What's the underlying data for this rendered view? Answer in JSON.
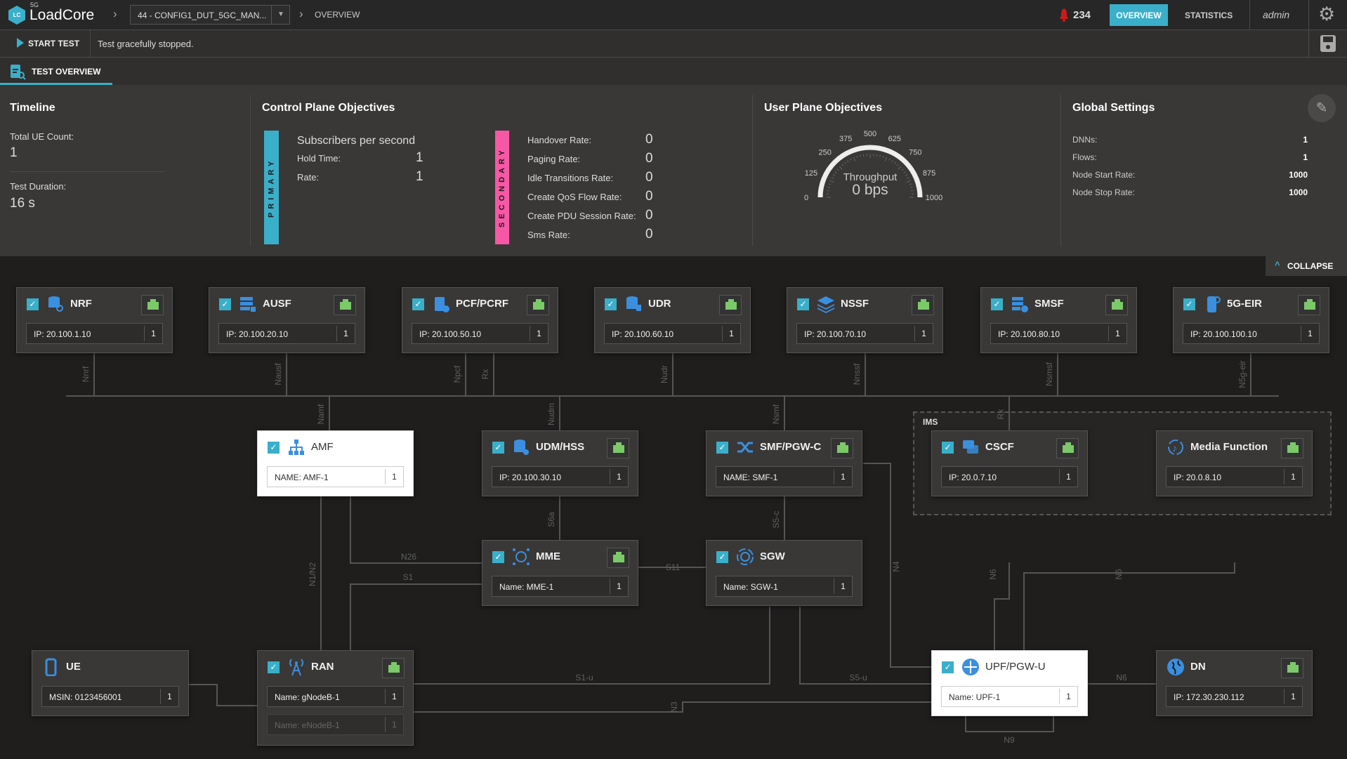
{
  "header": {
    "logo_text": "LC",
    "logo_super": "5G",
    "app_name": "LoadCore",
    "config_selector": "44 - CONFIG1_DUT_5GC_MAN...",
    "breadcrumb_current": "OVERVIEW",
    "alert_count": "234",
    "nav_tabs": [
      {
        "label": "OVERVIEW",
        "active": true
      },
      {
        "label": "STATISTICS",
        "active": false
      }
    ],
    "user": "admin"
  },
  "actions": {
    "start_test": "START TEST",
    "status": "Test gracefully stopped."
  },
  "tab": {
    "label": "TEST OVERVIEW"
  },
  "timeline": {
    "title": "Timeline",
    "ue_count_label": "Total UE Count:",
    "ue_count": "1",
    "duration_label": "Test Duration:",
    "duration": "16 s"
  },
  "control_plane": {
    "title": "Control Plane Objectives",
    "primary_label": "PRIMARY",
    "primary_title": "Subscribers per second",
    "primary": [
      {
        "label": "Hold Time:",
        "value": "1"
      },
      {
        "label": "Rate:",
        "value": "1"
      }
    ],
    "secondary_label": "SECONDARY",
    "secondary": [
      {
        "label": "Handover Rate:",
        "value": "0"
      },
      {
        "label": "Paging Rate:",
        "value": "0"
      },
      {
        "label": "Idle Transitions Rate:",
        "value": "0"
      },
      {
        "label": "Create QoS Flow Rate:",
        "value": "0"
      },
      {
        "label": "Create PDU Session Rate:",
        "value": "0"
      },
      {
        "label": "Sms Rate:",
        "value": "0"
      }
    ]
  },
  "user_plane": {
    "title": "User Plane Objectives",
    "gauge": {
      "label": "Throughput",
      "value_text": "0 bps",
      "value": 0,
      "min": 0,
      "max": 1000,
      "ticks": [
        "0",
        "125",
        "250",
        "375",
        "500",
        "625",
        "750",
        "875",
        "1000"
      ]
    }
  },
  "global_settings": {
    "title": "Global Settings",
    "items": [
      {
        "label": "DNNs:",
        "value": "1"
      },
      {
        "label": "Flows:",
        "value": "1"
      },
      {
        "label": "Node Start Rate:",
        "value": "1000"
      },
      {
        "label": "Node Stop Rate:",
        "value": "1000"
      }
    ]
  },
  "collapse_label": "COLLAPSE",
  "ims_label": "IMS",
  "nodes": [
    {
      "id": "nrf",
      "name": "NRF",
      "icon": "database-search",
      "checked": true,
      "eth": true,
      "fields": [
        {
          "label": "IP: 20.100.1.10",
          "count": "1"
        }
      ]
    },
    {
      "id": "ausf",
      "name": "AUSF",
      "icon": "server-lock",
      "checked": true,
      "eth": true,
      "fields": [
        {
          "label": "IP: 20.100.20.10",
          "count": "1"
        }
      ]
    },
    {
      "id": "pcf",
      "name": "PCF/PCRF",
      "icon": "clipboard-check",
      "checked": true,
      "eth": true,
      "fields": [
        {
          "label": "IP: 20.100.50.10",
          "count": "1"
        }
      ]
    },
    {
      "id": "udr",
      "name": "UDR",
      "icon": "database-file",
      "checked": true,
      "eth": true,
      "fields": [
        {
          "label": "IP: 20.100.60.10",
          "count": "1"
        }
      ]
    },
    {
      "id": "nssf",
      "name": "NSSF",
      "icon": "layers",
      "checked": true,
      "eth": true,
      "fields": [
        {
          "label": "IP: 20.100.70.10",
          "count": "1"
        }
      ]
    },
    {
      "id": "smsf",
      "name": "SMSF",
      "icon": "server-chat",
      "checked": true,
      "eth": true,
      "fields": [
        {
          "label": "IP: 20.100.80.10",
          "count": "1"
        }
      ]
    },
    {
      "id": "eir",
      "name": "5G-EIR",
      "icon": "phone-block",
      "checked": true,
      "eth": true,
      "fields": [
        {
          "label": "IP: 20.100.100.10",
          "count": "1"
        }
      ]
    },
    {
      "id": "amf",
      "name": "AMF",
      "icon": "sitemap",
      "checked": true,
      "eth": false,
      "highlight": true,
      "fields": [
        {
          "label": "NAME: AMF-1",
          "count": "1"
        }
      ]
    },
    {
      "id": "udm",
      "name": "UDM/HSS",
      "icon": "database-gear",
      "checked": true,
      "eth": true,
      "fields": [
        {
          "label": "IP: 20.100.30.10",
          "count": "1"
        }
      ]
    },
    {
      "id": "smf",
      "name": "SMF/PGW-C",
      "icon": "shuffle",
      "checked": true,
      "eth": true,
      "fields": [
        {
          "label": "NAME: SMF-1",
          "count": "1"
        }
      ]
    },
    {
      "id": "cscf",
      "name": "CSCF",
      "icon": "chat",
      "checked": true,
      "eth": true,
      "fields": [
        {
          "label": "IP: 20.0.7.10",
          "count": "1"
        }
      ]
    },
    {
      "id": "media",
      "name": "Media Function",
      "icon": "music-sync",
      "checked": false,
      "eth": true,
      "fields": [
        {
          "label": "IP: 20.0.8.10",
          "count": "1"
        }
      ]
    },
    {
      "id": "mme",
      "name": "MME",
      "icon": "circle-nodes",
      "checked": true,
      "eth": true,
      "fields": [
        {
          "label": "Name: MME-1",
          "count": "1"
        }
      ]
    },
    {
      "id": "sgw",
      "name": "SGW",
      "icon": "circle-sync",
      "checked": true,
      "eth": false,
      "fields": [
        {
          "label": "Name: SGW-1",
          "count": "1"
        }
      ]
    },
    {
      "id": "ue",
      "name": "UE",
      "icon": "mobile-phone",
      "checked": false,
      "eth": false,
      "fields": [
        {
          "label": "MSIN: 0123456001",
          "count": "1"
        }
      ]
    },
    {
      "id": "ran",
      "name": "RAN",
      "icon": "antenna-tower",
      "checked": true,
      "eth": true,
      "fields": [
        {
          "label": "Name: gNodeB-1",
          "count": "1"
        },
        {
          "label": "Name: eNodeB-1",
          "count": "1",
          "disabled": true
        }
      ]
    },
    {
      "id": "upf",
      "name": "UPF/PGW-U",
      "icon": "router",
      "checked": true,
      "eth": false,
      "highlight": true,
      "fields": [
        {
          "label": "Name: UPF-1",
          "count": "1"
        }
      ]
    },
    {
      "id": "dn",
      "name": "DN",
      "icon": "globe",
      "checked": false,
      "eth": true,
      "fields": [
        {
          "label": "IP: 172.30.230.112",
          "count": "1"
        }
      ]
    }
  ],
  "links": [
    "Nnrf",
    "Nausf",
    "Npcf",
    "Rx",
    "Nudr",
    "Nnssf",
    "Nsmsf",
    "N5g-eir",
    "Namf",
    "Nudm",
    "Nsmf",
    "Rx",
    "S6a",
    "S5-c",
    "N4",
    "N1/N2",
    "N26",
    "S1",
    "S11",
    "S1-u",
    "N3",
    "S5-u",
    "N6",
    "N6",
    "N6",
    "N9"
  ],
  "colors": {
    "accent": "#3aafca",
    "primary": "#3aafca",
    "secondary": "#f857a6",
    "eth": "#7cc96a",
    "alert": "#cc1b1b",
    "icon": "#3a8fe0"
  }
}
